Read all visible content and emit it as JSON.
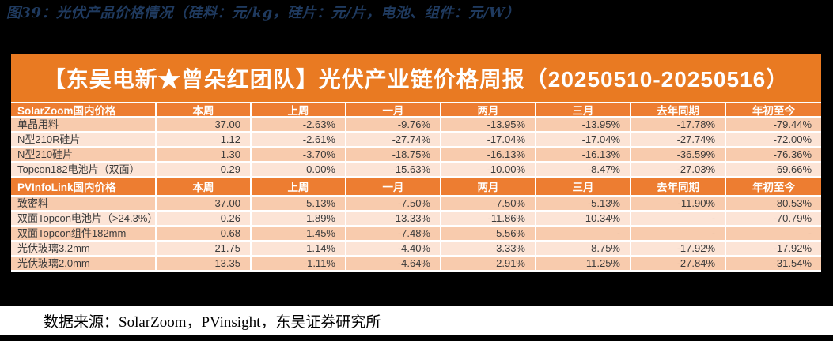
{
  "figure": {
    "title": "图39：光伏产品价格情况（硅料：元/kg，硅片：元/片，电池、组件：元/W）"
  },
  "table": {
    "main_header": "【东吴电新★曾朵红团队】光伏产业链价格周报（20250510-20250516）",
    "columns": [
      "本周",
      "上周",
      "一月",
      "两月",
      "三月",
      "去年同期",
      "年初至今"
    ],
    "sections": [
      {
        "name": "SolarZoom国内价格",
        "rows": [
          {
            "label": "单晶用料",
            "values": [
              "37.00",
              "-2.63%",
              "-9.76%",
              "-13.95%",
              "-13.95%",
              "-17.78%",
              "-79.44%"
            ]
          },
          {
            "label": "N型210R硅片",
            "values": [
              "1.12",
              "-2.61%",
              "-27.74%",
              "-17.04%",
              "-17.04%",
              "-27.74%",
              "-72.00%"
            ]
          },
          {
            "label": "N型210硅片",
            "values": [
              "1.30",
              "-3.70%",
              "-18.75%",
              "-16.13%",
              "-16.13%",
              "-36.59%",
              "-76.36%"
            ]
          },
          {
            "label": "Topcon182电池片（双面）",
            "values": [
              "0.29",
              "0.00%",
              "-15.63%",
              "-10.00%",
              "-8.47%",
              "-27.03%",
              "-69.66%"
            ]
          }
        ]
      },
      {
        "name": "PVInfoLink国内价格",
        "rows": [
          {
            "label": "致密料",
            "values": [
              "37.00",
              "-5.13%",
              "-7.50%",
              "-7.50%",
              "-5.13%",
              "-11.90%",
              "-80.53%"
            ]
          },
          {
            "label": "双面Topcon电池片（>24.3%）",
            "values": [
              "0.26",
              "-1.89%",
              "-13.33%",
              "-11.86%",
              "-10.34%",
              "-",
              "-70.79%"
            ]
          },
          {
            "label": "双面Topcon组件182mm",
            "values": [
              "0.68",
              "-1.45%",
              "-7.48%",
              "-5.56%",
              "-",
              "-",
              "-"
            ]
          },
          {
            "label": "光伏玻璃3.2mm",
            "values": [
              "21.75",
              "-1.14%",
              "-4.40%",
              "-3.33%",
              "8.75%",
              "-17.92%",
              "-17.92%"
            ]
          },
          {
            "label": "光伏玻璃2.0mm",
            "values": [
              "13.35",
              "-1.11%",
              "-4.64%",
              "-2.91%",
              "11.25%",
              "-27.84%",
              "-31.54%"
            ]
          }
        ]
      }
    ]
  },
  "footer": {
    "source": "数据来源：SolarZoom，PVinsight，东吴证券研究所"
  },
  "colors": {
    "page_background": "#000000",
    "title_text": "#1F3A5F",
    "band_orange": "#E97A22",
    "header_orange": "#ED7D31",
    "row_dark": "#F8CBAD",
    "row_light": "#FCE4D6",
    "cell_text": "#3B3B3B",
    "separator": "#FFFFFF"
  }
}
